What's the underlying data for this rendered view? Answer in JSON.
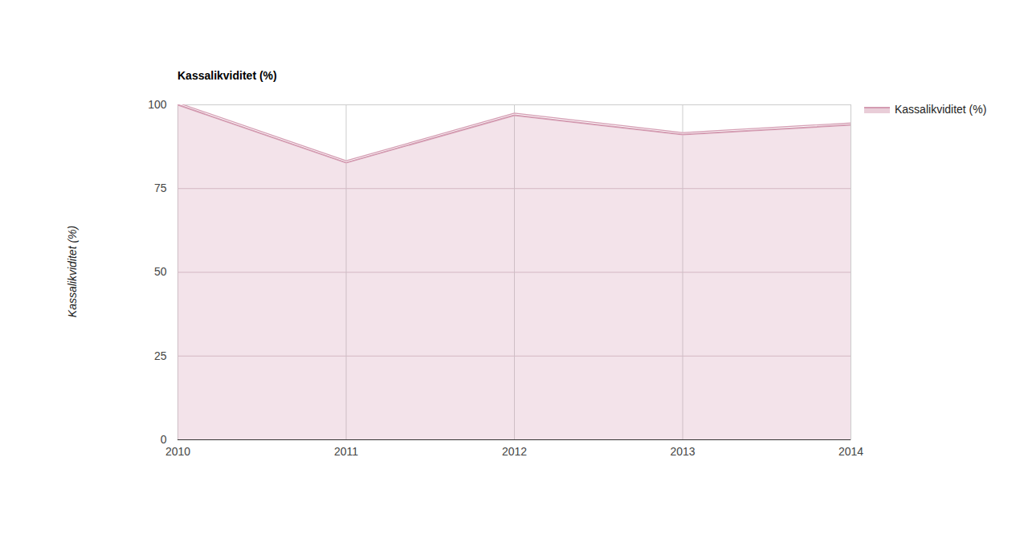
{
  "chart_data": {
    "type": "area",
    "title": "Kassalikviditet (%)",
    "y_label": "Kassalikviditet (%)",
    "x": [
      2010,
      2011,
      2012,
      2013,
      2014
    ],
    "series": [
      {
        "name": "Kassalikviditet (%)",
        "color": "#d49cb2",
        "values": [
          100,
          82.7,
          96.9,
          91.1,
          94.0
        ]
      }
    ],
    "xlim": [
      2010,
      2014
    ],
    "xticks": [
      2010,
      2011,
      2012,
      2013,
      2014
    ],
    "ylim": [
      0,
      100
    ],
    "yticks": [
      0,
      25,
      50,
      75,
      100
    ],
    "grid": true,
    "legend": "right"
  }
}
